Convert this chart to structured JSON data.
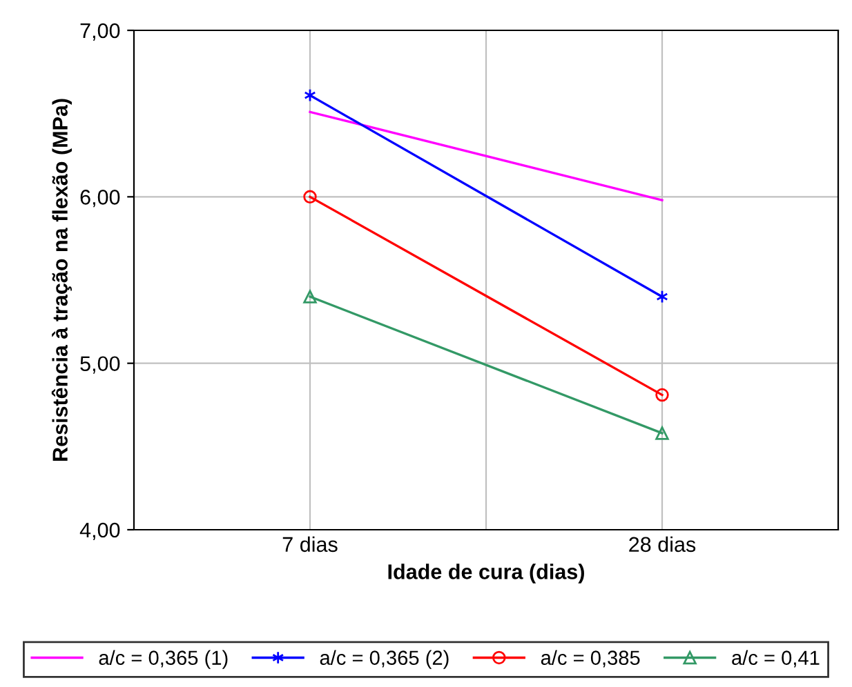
{
  "chart_data": {
    "type": "line",
    "xlabel": "Idade de cura (dias)",
    "ylabel": "Resistência à tração na flexão (MPa)",
    "categories": [
      "7 dias",
      "28 dias"
    ],
    "series": [
      {
        "name": "a/c = 0,365 (1)",
        "color": "#ff00ff",
        "values": [
          6.51,
          5.98
        ],
        "marker": "none"
      },
      {
        "name": "a/c = 0,365 (2)",
        "color": "#0000ff",
        "values": [
          6.61,
          5.4
        ],
        "marker": "cross"
      },
      {
        "name": "a/c = 0,385",
        "color": "#ff0000",
        "values": [
          6.0,
          4.81
        ],
        "marker": "circle"
      },
      {
        "name": "a/c = 0,41",
        "color": "#339966",
        "values": [
          5.4,
          4.58
        ],
        "marker": "triangle"
      }
    ],
    "ylim": [
      4,
      7
    ],
    "yticks": [
      {
        "value": 4,
        "label": "4,00"
      },
      {
        "value": 5,
        "label": "5,00"
      },
      {
        "value": 6,
        "label": "6,00"
      },
      {
        "value": 7,
        "label": "7,00"
      }
    ],
    "grid": true,
    "legend": "bottom",
    "line_style": "solid"
  }
}
